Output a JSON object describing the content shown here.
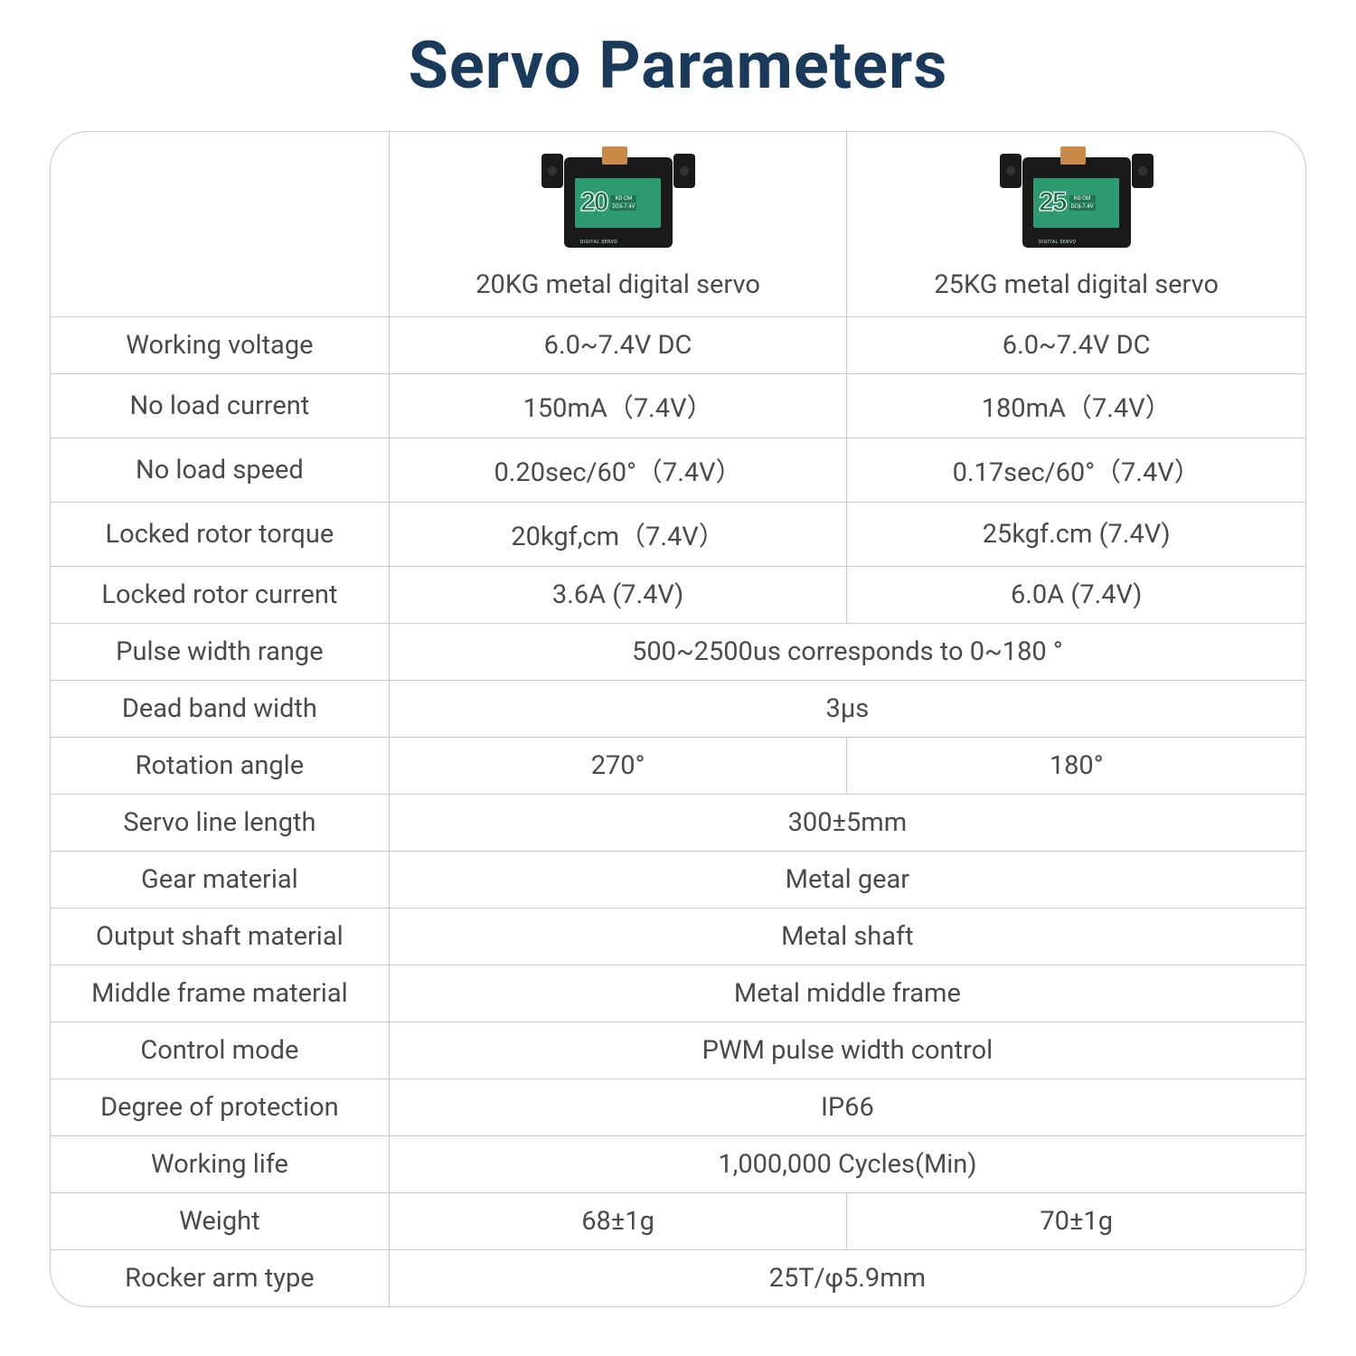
{
  "title": "Servo Parameters",
  "style": {
    "title_color": "#1a3a5c",
    "title_fontsize": 72,
    "title_weight": 700,
    "cell_fontsize": 29,
    "text_color": "#4a4a4a",
    "border_color": "#c8c8c8",
    "border_radius": 42,
    "background": "#ffffff",
    "servo_body_color": "#1a1a1a",
    "servo_label_bg": "#2d9b6f",
    "servo_gear_color": "#c98a4a",
    "col_widths_pct": [
      27,
      36.5,
      36.5
    ]
  },
  "products": [
    {
      "torque_label": "20",
      "name": "20KG metal digital servo"
    },
    {
      "torque_label": "25",
      "name": "25KG metal digital servo"
    }
  ],
  "rows": [
    {
      "param": "Working voltage",
      "v1": "6.0~7.4V DC",
      "v2": "6.0~7.4V DC"
    },
    {
      "param": "No load current",
      "v1": "150mA（7.4V）",
      "v2": "180mA（7.4V）"
    },
    {
      "param": "No load speed",
      "v1": "0.20sec/60°（7.4V）",
      "v2": "0.17sec/60°（7.4V）"
    },
    {
      "param": "Locked rotor torque",
      "v1": "20kgf,cm（7.4V）",
      "v2": "25kgf.cm (7.4V)"
    },
    {
      "param": "Locked rotor current",
      "v1": "3.6A (7.4V)",
      "v2": "6.0A (7.4V)"
    },
    {
      "param": "Pulse width range",
      "span": "500~2500us corresponds to 0~180 °"
    },
    {
      "param": "Dead band width",
      "span": "3μs"
    },
    {
      "param": "Rotation angle",
      "v1": "270°",
      "v2": "180°"
    },
    {
      "param": "Servo line length",
      "span": "300±5mm"
    },
    {
      "param": "Gear material",
      "span": "Metal gear"
    },
    {
      "param": "Output shaft material",
      "span": "Metal shaft"
    },
    {
      "param": "Middle frame material",
      "span": "Metal middle frame"
    },
    {
      "param": "Control mode",
      "span": "PWM pulse width control"
    },
    {
      "param": "Degree of protection",
      "span": "IP66"
    },
    {
      "param": "Working life",
      "span": "1,000,000 Cycles(Min)"
    },
    {
      "param": "Weight",
      "v1": "68±1g",
      "v2": "70±1g"
    },
    {
      "param": "Rocker arm type",
      "span": "25T/φ5.9mm"
    }
  ]
}
